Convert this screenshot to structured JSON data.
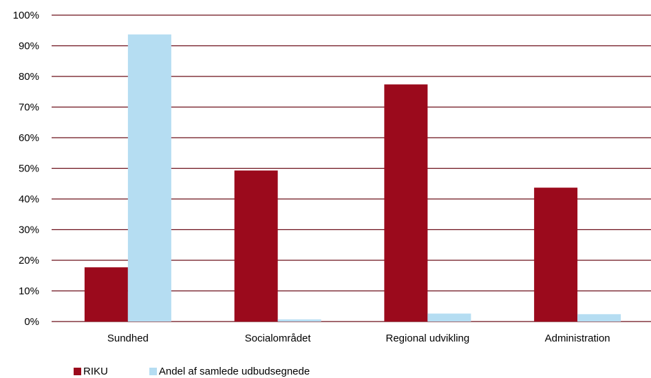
{
  "chart_data": {
    "type": "bar",
    "categories": [
      "Sundhed",
      "Socialområdet",
      "Regional udvikling",
      "Administration"
    ],
    "series": [
      {
        "name": "RIKU",
        "color": "#9B0A1C",
        "values": [
          17.7,
          49.3,
          77.4,
          43.7
        ]
      },
      {
        "name": "Andel af samlede udbudsegnede",
        "color": "#B5DDF2",
        "values": [
          93.7,
          0.7,
          2.6,
          2.4
        ]
      }
    ],
    "ylim": [
      0,
      100
    ],
    "ytick_step": 10,
    "ytick_format": "percent",
    "grid": true,
    "gridline_color": "#6B0E18",
    "legend_placement": "bottom-left"
  }
}
